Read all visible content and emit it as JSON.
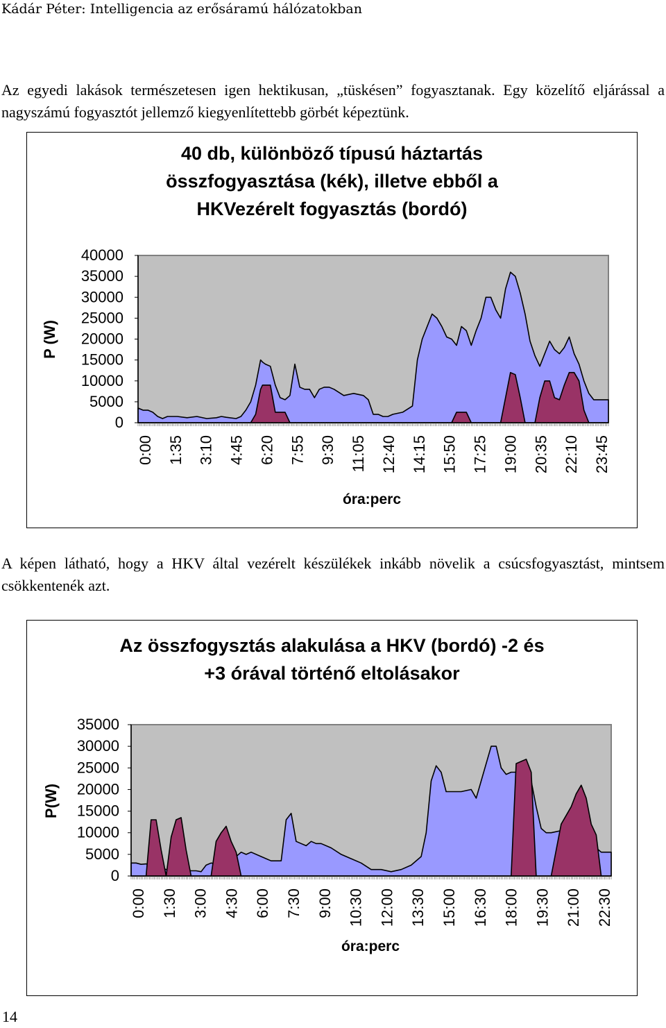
{
  "header": {
    "running_title": "Kádár Péter: Intelligencia az erősáramú hálózatokban"
  },
  "paragraphs": {
    "intro": "Az egyedi lakások természetesen igen hektikusan, „tüskésen” fogyasztanak. Egy közelítő eljárással a nagyszámú fogyasztót jellemző kiegyenlítettebb görbét képeztünk.",
    "middle": "A képen látható, hogy a HKV által vezérelt készülékek inkább növelik a csúcsfogyasztást, mintsem csökkentenék azt."
  },
  "page_number": "14",
  "colors": {
    "total": "#9999ff",
    "hkv": "#993366",
    "plot_bg": "#c0c0c0",
    "axis": "#808080"
  },
  "chart_data": [
    {
      "type": "area",
      "title_line1": "40 db, különböző típusú háztartás",
      "title_line2": "összfogyasztása (kék), illetve ebből a",
      "title_line3": "HKVezérelt fogyasztás (bordó)",
      "xlabel": "óra:perc",
      "ylabel": "P (W)",
      "ylim": [
        0,
        40000
      ],
      "yticks": [
        "40000",
        "35000",
        "30000",
        "25000",
        "20000",
        "15000",
        "10000",
        "5000",
        "0"
      ],
      "xticks": [
        "0:00",
        "1:35",
        "3:10",
        "4:45",
        "6:20",
        "7:55",
        "9:30",
        "11:05",
        "12:40",
        "14:15",
        "15:50",
        "17:25",
        "19:00",
        "20:35",
        "22:10",
        "23:45"
      ],
      "x_hours": [
        0,
        0.25,
        0.5,
        0.75,
        1,
        1.25,
        1.5,
        2,
        2.5,
        3,
        3.5,
        4,
        4.25,
        4.5,
        5,
        5.25,
        5.5,
        5.75,
        6,
        6.25,
        6.35,
        6.5,
        6.75,
        7,
        7.25,
        7.5,
        7.75,
        8,
        8.25,
        8.5,
        8.75,
        9,
        9.25,
        9.5,
        9.75,
        10,
        10.5,
        11,
        11.5,
        11.75,
        12,
        12.25,
        12.5,
        12.75,
        13,
        13.5,
        14,
        14.25,
        14.5,
        15,
        15.25,
        15.5,
        15.75,
        16,
        16.25,
        16.5,
        16.75,
        17,
        17.25,
        17.5,
        17.75,
        18,
        18.25,
        18.5,
        18.75,
        19,
        19.25,
        19.5,
        19.75,
        20,
        20.25,
        20.5,
        20.75,
        21,
        21.25,
        21.5,
        21.75,
        22,
        22.25,
        22.5,
        22.75,
        23,
        23.25,
        23.5,
        23.75,
        24
      ],
      "total": [
        3500,
        3000,
        3000,
        2500,
        1500,
        1000,
        1500,
        1500,
        1200,
        1500,
        1000,
        1200,
        1500,
        1300,
        1000,
        1500,
        3000,
        5000,
        9000,
        15000,
        14500,
        14000,
        13500,
        9000,
        6000,
        5500,
        6500,
        14000,
        8500,
        8000,
        8000,
        6000,
        8000,
        8500,
        8500,
        8000,
        6500,
        7000,
        6500,
        5500,
        2000,
        2000,
        1500,
        1500,
        2000,
        2500,
        4000,
        15000,
        20000,
        26000,
        25000,
        23000,
        20500,
        20000,
        18500,
        23000,
        22000,
        18500,
        22000,
        25000,
        30000,
        30000,
        27000,
        25000,
        32000,
        36000,
        35000,
        31000,
        26000,
        19500,
        16000,
        13500,
        16500,
        19500,
        17500,
        16500,
        18000,
        20500,
        16500,
        14000,
        10000,
        7000,
        5500,
        5500,
        5500,
        5500
      ],
      "hkv": [
        0,
        0,
        0,
        0,
        0,
        0,
        0,
        0,
        0,
        0,
        0,
        0,
        0,
        0,
        0,
        0,
        0,
        0,
        2000,
        8000,
        9000,
        9000,
        9000,
        2500,
        2500,
        2500,
        0,
        0,
        0,
        0,
        0,
        0,
        0,
        0,
        0,
        0,
        0,
        0,
        0,
        0,
        0,
        0,
        0,
        0,
        0,
        0,
        0,
        0,
        0,
        0,
        0,
        0,
        0,
        0,
        2500,
        2500,
        2500,
        0,
        0,
        0,
        0,
        0,
        0,
        0,
        6000,
        12000,
        11500,
        6000,
        0,
        0,
        0,
        6000,
        10000,
        10000,
        6000,
        5500,
        9000,
        12000,
        12000,
        10000,
        3000,
        0,
        0,
        0,
        0,
        0
      ]
    },
    {
      "type": "area",
      "title_line1": "Az összfogysztás alakulása a HKV (bordó) -2 és",
      "title_line2": "+3 órával történő eltolásakor",
      "xlabel": "óra:perc",
      "ylabel": "P(W)",
      "ylim": [
        0,
        35000
      ],
      "yticks": [
        "35000",
        "30000",
        "25000",
        "20000",
        "15000",
        "10000",
        "5000",
        "0"
      ],
      "xticks": [
        "0:00",
        "1:30",
        "3:00",
        "4:30",
        "6:00",
        "7:30",
        "9:00",
        "10:30",
        "12:00",
        "13:30",
        "15:00",
        "16:30",
        "18:00",
        "19:30",
        "21:00",
        "22:30"
      ],
      "x_hours": [
        0,
        0.25,
        0.5,
        0.75,
        1,
        1.25,
        1.5,
        1.75,
        2,
        2.25,
        2.5,
        2.75,
        3,
        3.25,
        3.5,
        3.75,
        4,
        4.25,
        4.5,
        4.75,
        5,
        5.25,
        5.5,
        5.75,
        6,
        6.5,
        7,
        7.25,
        7.5,
        7.75,
        8,
        8.25,
        8.5,
        8.75,
        9,
        9.25,
        9.5,
        10,
        10.5,
        11,
        11.5,
        12,
        12.5,
        13,
        13.5,
        14,
        14.5,
        14.75,
        15,
        15.25,
        15.5,
        15.75,
        16,
        16.5,
        17,
        17.25,
        17.5,
        18,
        18.25,
        18.5,
        18.75,
        19,
        19.25,
        19.5,
        19.75,
        20,
        20.25,
        20.5,
        20.75,
        21,
        21.5,
        22,
        22.25,
        22.5,
        22.75,
        23,
        23.25,
        23.5,
        24
      ],
      "total": [
        3000,
        3000,
        2700,
        2800,
        2500,
        2000,
        2000,
        1500,
        1500,
        1500,
        1500,
        1200,
        1200,
        1200,
        1000,
        2500,
        3000,
        2800,
        2500,
        3000,
        3000,
        4500,
        5500,
        5000,
        5500,
        4500,
        3500,
        3500,
        3500,
        13000,
        14500,
        8000,
        7500,
        7000,
        8000,
        7500,
        7500,
        6500,
        5000,
        4000,
        3000,
        1500,
        1500,
        1000,
        1500,
        2500,
        4500,
        10000,
        22000,
        25500,
        24000,
        19500,
        19500,
        19500,
        20000,
        18000,
        22000,
        30000,
        30000,
        25000,
        23500,
        24000,
        24000,
        24000,
        24500,
        22000,
        16000,
        11000,
        10000,
        10000,
        10500,
        11000,
        10500,
        10000,
        9000,
        8000,
        6500,
        5500,
        5500
      ],
      "hkv": [
        0,
        0,
        0,
        0,
        13000,
        13000,
        6000,
        0,
        9000,
        13000,
        13500,
        6000,
        0,
        0,
        0,
        0,
        0,
        8000,
        10000,
        11500,
        8000,
        5500,
        0,
        0,
        0,
        0,
        0,
        0,
        0,
        0,
        0,
        0,
        0,
        0,
        0,
        0,
        0,
        0,
        0,
        0,
        0,
        0,
        0,
        0,
        0,
        0,
        0,
        0,
        0,
        0,
        0,
        0,
        0,
        0,
        0,
        0,
        0,
        0,
        0,
        0,
        0,
        0,
        26000,
        26500,
        27000,
        24000,
        0,
        0,
        0,
        0,
        12000,
        16000,
        19000,
        21000,
        18000,
        12000,
        9500,
        0,
        0
      ]
    }
  ]
}
